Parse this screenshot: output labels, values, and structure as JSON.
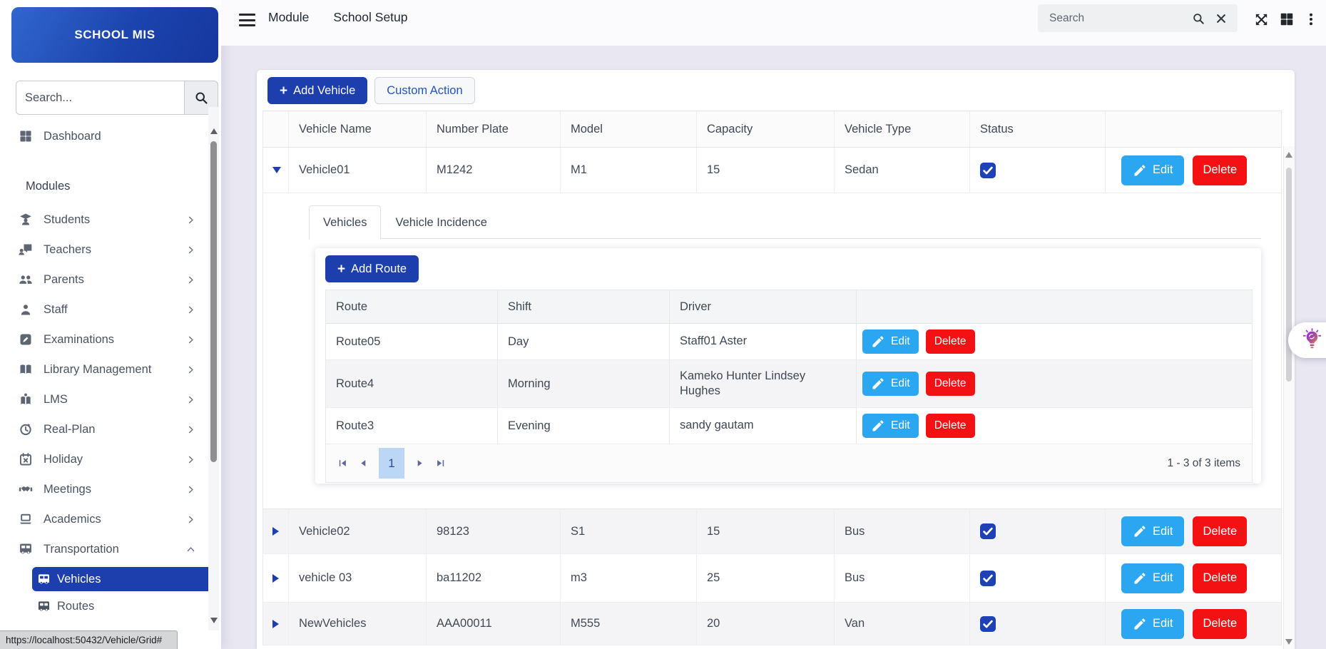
{
  "app": {
    "brand": "SCHOOL MIS"
  },
  "colors": {
    "primary_blue": "#1d3fad",
    "active_nav_blue": "#1d3fae",
    "edit_blue": "#2ba7f2",
    "delete_red": "#f31114",
    "checkbox_blue": "#1e41b5",
    "page_indicator_bg": "#bcd7f5"
  },
  "sidebar": {
    "search_placeholder": "Search...",
    "dashboard_label": "Dashboard",
    "section_label": "Modules",
    "items": [
      {
        "label": "Students",
        "icon": "student",
        "chevron": "right"
      },
      {
        "label": "Teachers",
        "icon": "teacher",
        "chevron": "right"
      },
      {
        "label": "Parents",
        "icon": "parents",
        "chevron": "right"
      },
      {
        "label": "Staff",
        "icon": "staff",
        "chevron": "right"
      },
      {
        "label": "Examinations",
        "icon": "exam",
        "chevron": "right"
      },
      {
        "label": "Library Management",
        "icon": "library",
        "chevron": "right"
      },
      {
        "label": "LMS",
        "icon": "lms",
        "chevron": "right"
      },
      {
        "label": "Real-Plan",
        "icon": "realplan",
        "chevron": "right"
      },
      {
        "label": "Holiday",
        "icon": "holiday",
        "chevron": "right"
      },
      {
        "label": "Meetings",
        "icon": "meetings",
        "chevron": "right"
      },
      {
        "label": "Academics",
        "icon": "academics",
        "chevron": "right"
      },
      {
        "label": "Transportation",
        "icon": "bus",
        "chevron": "up",
        "expanded": true,
        "children": [
          {
            "label": "Vehicles",
            "icon": "bus",
            "active": true
          },
          {
            "label": "Routes",
            "icon": "bus",
            "active": false
          }
        ]
      }
    ],
    "status_url": "https://localhost:50432/Vehicle/Grid#"
  },
  "topbar": {
    "menu": [
      "Module",
      "School Setup"
    ],
    "search_placeholder": "Search"
  },
  "main": {
    "plus_glyph": "+",
    "add_vehicle_label": "Add Vehicle",
    "custom_action_label": "Custom Action"
  },
  "vehicle_grid": {
    "columns": [
      "Vehicle Name",
      "Number Plate",
      "Model",
      "Capacity",
      "Vehicle Type",
      "Status"
    ],
    "edit_label": "Edit",
    "delete_label": "Delete",
    "rows": [
      {
        "name": "Vehicle01",
        "plate": "M1242",
        "model": "M1",
        "capacity": "15",
        "type": "Sedan",
        "status": true,
        "expanded": true
      },
      {
        "name": "Vehicle02",
        "plate": "98123",
        "model": "S1",
        "capacity": "15",
        "type": "Bus",
        "status": true,
        "expanded": false
      },
      {
        "name": "vehicle 03",
        "plate": "ba11202",
        "model": "m3",
        "capacity": "25",
        "type": "Bus",
        "status": true,
        "expanded": false
      },
      {
        "name": "NewVehicles",
        "plate": "AAA00011",
        "model": "M555",
        "capacity": "20",
        "type": "Van",
        "status": true,
        "expanded": false
      }
    ]
  },
  "detail": {
    "tabs": [
      "Vehicles",
      "Vehicle Incidence"
    ],
    "active_tab": "Vehicles",
    "add_route_label": "Add Route",
    "route_grid": {
      "columns": [
        "Route",
        "Shift",
        "Driver"
      ],
      "rows": [
        {
          "route": "Route05",
          "shift": "Day",
          "driver": "Staff01 Aster"
        },
        {
          "route": "Route4",
          "shift": "Morning",
          "driver": "Kameko Hunter Lindsey Hughes"
        },
        {
          "route": "Route3",
          "shift": "Evening",
          "driver": "sandy gautam"
        }
      ],
      "pager": {
        "page": "1",
        "summary": "1 - 3 of 3 items"
      }
    }
  }
}
